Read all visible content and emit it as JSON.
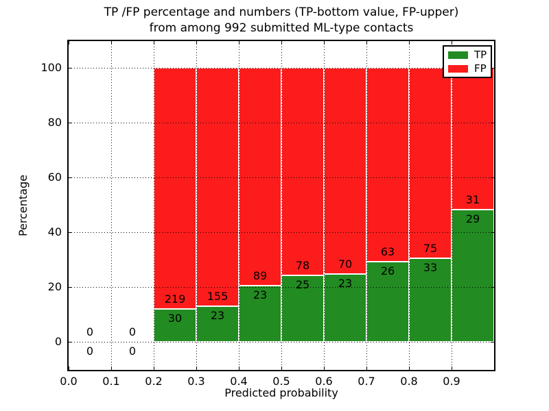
{
  "chart_data": {
    "type": "bar",
    "stacked": true,
    "title": "TP /FP percentage and numbers (TP-bottom value, FP-upper) from among 992 submitted ML-type contacts",
    "title_line1": "TP /FP percentage and numbers (TP-bottom value, FP-upper)",
    "title_line2": "from among 992 submitted ML-type contacts",
    "xlabel": "Predicted probability",
    "ylabel": "Percentage",
    "total_contacts": 992,
    "xlim": [
      0.0,
      1.0
    ],
    "ylim": [
      -10.25,
      109.75
    ],
    "x_ticks": [
      "0.0",
      "0.1",
      "0.2",
      "0.3",
      "0.4",
      "0.5",
      "0.6",
      "0.7",
      "0.8",
      "0.9"
    ],
    "y_ticks": [
      "0",
      "20",
      "40",
      "60",
      "80",
      "100"
    ],
    "grid": "dotted",
    "legend_position": "upper right",
    "series": [
      {
        "name": "TP",
        "color": "#228b22"
      },
      {
        "name": "FP",
        "color": "#fc1c1c"
      }
    ],
    "bins": [
      {
        "x0": 0.0,
        "x1": 0.1,
        "tp": 0,
        "fp": 0,
        "tp_pct": 0
      },
      {
        "x0": 0.1,
        "x1": 0.2,
        "tp": 0,
        "fp": 0,
        "tp_pct": 0
      },
      {
        "x0": 0.2,
        "x1": 0.3,
        "tp": 30,
        "fp": 219,
        "tp_pct": 12.05
      },
      {
        "x0": 0.3,
        "x1": 0.4,
        "tp": 23,
        "fp": 155,
        "tp_pct": 12.92
      },
      {
        "x0": 0.4,
        "x1": 0.5,
        "tp": 23,
        "fp": 89,
        "tp_pct": 20.54
      },
      {
        "x0": 0.5,
        "x1": 0.6,
        "tp": 25,
        "fp": 78,
        "tp_pct": 24.27
      },
      {
        "x0": 0.6,
        "x1": 0.7,
        "tp": 23,
        "fp": 70,
        "tp_pct": 24.73
      },
      {
        "x0": 0.7,
        "x1": 0.8,
        "tp": 26,
        "fp": 63,
        "tp_pct": 29.21
      },
      {
        "x0": 0.8,
        "x1": 0.9,
        "tp": 33,
        "fp": 75,
        "tp_pct": 30.56
      },
      {
        "x0": 0.9,
        "x1": 1.0,
        "tp": 29,
        "fp": 31,
        "tp_pct": 48.33
      }
    ]
  }
}
